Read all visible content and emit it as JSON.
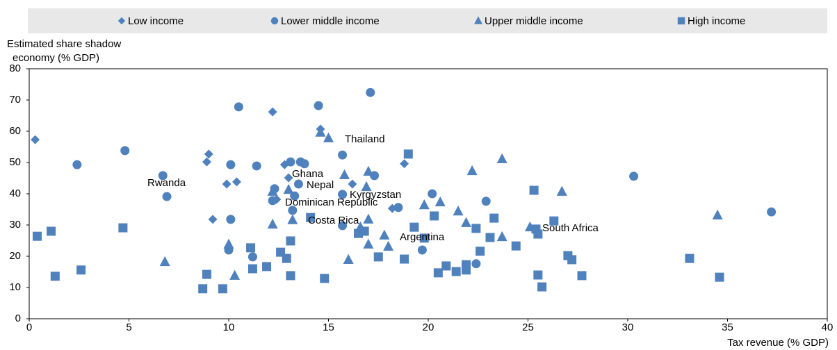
{
  "chart_data": {
    "type": "scatter",
    "ylabel": [
      "Estimated share shadow",
      "economy (% GDP)"
    ],
    "xlabel": "Tax revenue (% GDP)",
    "xlim": [
      0,
      40
    ],
    "xticks": [
      0,
      5,
      10,
      15,
      20,
      25,
      30,
      35,
      40
    ],
    "ylim": [
      0,
      80
    ],
    "yticks": [
      0,
      10,
      20,
      30,
      40,
      50,
      60,
      70,
      80
    ],
    "grid": false,
    "legend": "top",
    "annotations": [
      "Rwanda",
      "Ghana",
      "Nepal",
      "Kyrgyzstan",
      "Dominican Republic",
      "Costa Rica",
      "Thailand",
      "Argentina",
      "South Africa"
    ],
    "series": [
      {
        "name": "Low income",
        "marker": "diamond",
        "color": "#4f81bd",
        "x": [
          0.3,
          9.0,
          8.9,
          9.9,
          10.4,
          9.2,
          12.2,
          12.8,
          13.0,
          12.4,
          14.6,
          16.2,
          18.8,
          18.2
        ],
        "values": [
          57.3,
          52.7,
          50.2,
          43.1,
          43.8,
          31.8,
          66.2,
          49.3,
          45.1,
          38.2,
          60.7,
          43.1,
          49.6,
          35.3
        ]
      },
      {
        "name": "Lower middle income",
        "marker": "circle",
        "color": "#4f81bd",
        "x": [
          2.4,
          4.8,
          6.7,
          6.9,
          10.1,
          10.1,
          10.0,
          10.5,
          11.4,
          11.2,
          12.3,
          12.2,
          13.1,
          13.6,
          13.8,
          13.3,
          13.2,
          13.5,
          14.5,
          17.1,
          15.7,
          17.3,
          15.7,
          15.7,
          18.5,
          20.2,
          19.7,
          22.9,
          22.4,
          30.3,
          37.2
        ],
        "values": [
          49.3,
          53.8,
          45.8,
          39.1,
          49.3,
          31.8,
          22.0,
          67.8,
          48.9,
          19.8,
          41.6,
          37.8,
          50.2,
          50.2,
          49.6,
          39.3,
          34.7,
          43.1,
          68.2,
          72.4,
          52.4,
          45.8,
          39.8,
          29.8,
          35.6,
          40.0,
          22.0,
          37.6,
          17.6,
          45.6,
          34.2
        ]
      },
      {
        "name": "Upper middle income",
        "marker": "triangle",
        "color": "#4f81bd",
        "x": [
          6.8,
          10.0,
          10.3,
          12.2,
          12.2,
          13.0,
          13.2,
          15.0,
          14.6,
          15.8,
          17.0,
          16.9,
          16.0,
          16.6,
          17.0,
          17.0,
          17.8,
          18.0,
          19.8,
          20.6,
          21.5,
          21.9,
          22.2,
          23.7,
          23.7,
          25.1,
          26.7,
          34.5
        ],
        "values": [
          18.2,
          23.8,
          13.8,
          40.7,
          30.2,
          41.3,
          31.6,
          57.8,
          59.6,
          46.0,
          47.1,
          42.2,
          18.9,
          29.3,
          23.8,
          31.8,
          26.7,
          23.1,
          36.4,
          37.3,
          34.4,
          30.7,
          47.3,
          51.1,
          26.2,
          29.3,
          40.7,
          33.1
        ]
      },
      {
        "name": "High income",
        "marker": "square",
        "color": "#4f81bd",
        "x": [
          0.4,
          1.1,
          1.3,
          2.6,
          4.7,
          8.7,
          8.9,
          9.7,
          11.1,
          11.2,
          11.9,
          12.6,
          12.9,
          13.1,
          13.1,
          14.1,
          14.8,
          16.5,
          16.8,
          17.5,
          19.0,
          18.8,
          19.3,
          19.8,
          20.3,
          20.5,
          20.9,
          21.4,
          21.9,
          21.9,
          22.4,
          22.6,
          23.1,
          23.3,
          24.4,
          25.3,
          25.4,
          25.5,
          25.5,
          25.7,
          26.3,
          27.0,
          27.2,
          27.7,
          33.1,
          34.6
        ],
        "values": [
          26.4,
          28.0,
          13.6,
          15.6,
          29.1,
          9.6,
          14.2,
          9.6,
          22.7,
          16.0,
          16.7,
          21.3,
          19.3,
          24.9,
          13.8,
          32.4,
          12.9,
          27.3,
          28.0,
          19.8,
          52.7,
          19.1,
          29.3,
          25.8,
          32.9,
          14.7,
          16.9,
          15.1,
          17.3,
          15.6,
          28.9,
          21.6,
          26.0,
          32.2,
          23.3,
          41.1,
          28.7,
          27.1,
          14.0,
          10.2,
          31.3,
          20.2,
          18.9,
          13.8,
          19.3,
          13.3
        ]
      }
    ]
  }
}
